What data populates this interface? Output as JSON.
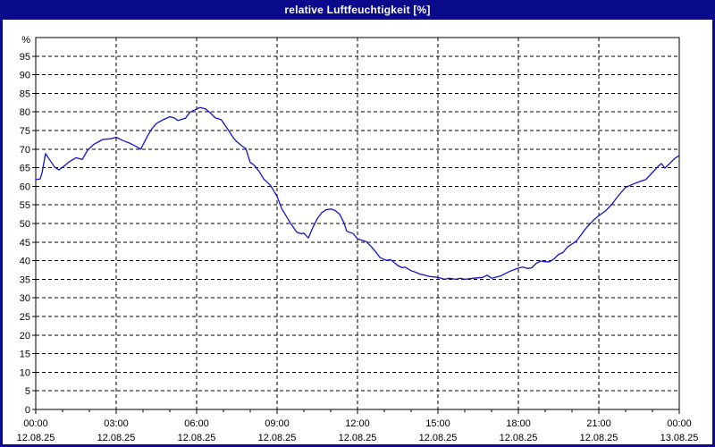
{
  "window": {
    "title": "relative Luftfeuchtigkeit [%]"
  },
  "colors": {
    "titlebar": "#0a0a8c",
    "frame": "#0a0a8c",
    "plot_background": "#ffffff",
    "grid": "#000000",
    "axis": "#000000",
    "line": "#1414cc",
    "label_text": "#000000",
    "title_text": "#ffffff"
  },
  "chart_data": {
    "type": "line",
    "title": "relative Luftfeuchtigkeit [%]",
    "ylabel": "%",
    "xlabel": "",
    "grid": "dashed",
    "legend": "none",
    "y_axis": {
      "unit": "%",
      "min": 0,
      "max": 100,
      "tick_step": 5,
      "top_label": 95,
      "bottom_label": 0
    },
    "x_axis": {
      "range_hours": [
        0,
        24
      ],
      "major_tick_interval_h": 3,
      "minor_tick_interval_h": 1,
      "ticks": [
        {
          "time": "00:00",
          "date": "12.08.25",
          "hour": 0
        },
        {
          "time": "03:00",
          "date": "12.08.25",
          "hour": 3
        },
        {
          "time": "06:00",
          "date": "12.08.25",
          "hour": 6
        },
        {
          "time": "09:00",
          "date": "12.08.25",
          "hour": 9
        },
        {
          "time": "12:00",
          "date": "12.08.25",
          "hour": 12
        },
        {
          "time": "15:00",
          "date": "12.08.25",
          "hour": 15
        },
        {
          "time": "18:00",
          "date": "12.08.25",
          "hour": 18
        },
        {
          "time": "21:00",
          "date": "12.08.25",
          "hour": 21
        },
        {
          "time": "00:00",
          "date": "13.08.25",
          "hour": 24
        }
      ]
    },
    "series": [
      {
        "name": "relative Luftfeuchtigkeit",
        "unit": "%",
        "points": [
          [
            "00:00",
            61.8
          ],
          [
            "00:10",
            62.0
          ],
          [
            "00:14",
            63.6
          ],
          [
            "00:22",
            68.8
          ],
          [
            "00:32",
            67.0
          ],
          [
            "00:42",
            65.2
          ],
          [
            "00:52",
            64.4
          ],
          [
            "01:05",
            65.6
          ],
          [
            "01:15",
            66.6
          ],
          [
            "01:30",
            67.7
          ],
          [
            "01:44",
            67.2
          ],
          [
            "01:56",
            69.7
          ],
          [
            "02:10",
            71.3
          ],
          [
            "02:30",
            72.6
          ],
          [
            "02:48",
            72.8
          ],
          [
            "03:00",
            73.2
          ],
          [
            "03:15",
            72.3
          ],
          [
            "03:30",
            71.6
          ],
          [
            "03:45",
            70.7
          ],
          [
            "03:55",
            70.0
          ],
          [
            "04:10",
            73.5
          ],
          [
            "04:20",
            75.5
          ],
          [
            "04:30",
            76.9
          ],
          [
            "04:45",
            77.9
          ],
          [
            "05:00",
            78.7
          ],
          [
            "05:10",
            78.4
          ],
          [
            "05:18",
            77.7
          ],
          [
            "05:35",
            78.3
          ],
          [
            "05:45",
            79.9
          ],
          [
            "06:00",
            80.8
          ],
          [
            "06:08",
            81.2
          ],
          [
            "06:20",
            80.8
          ],
          [
            "06:30",
            79.8
          ],
          [
            "06:42",
            78.4
          ],
          [
            "06:55",
            77.9
          ],
          [
            "07:10",
            75.3
          ],
          [
            "07:23",
            72.9
          ],
          [
            "07:30",
            72.0
          ],
          [
            "07:42",
            70.8
          ],
          [
            "07:50",
            70.2
          ],
          [
            "08:00",
            66.4
          ],
          [
            "08:08",
            65.8
          ],
          [
            "08:20",
            64.0
          ],
          [
            "08:30",
            62.0
          ],
          [
            "08:45",
            60.3
          ],
          [
            "09:00",
            57.3
          ],
          [
            "09:10",
            54.1
          ],
          [
            "09:20",
            52.1
          ],
          [
            "09:30",
            50.1
          ],
          [
            "09:44",
            47.7
          ],
          [
            "09:55",
            47.2
          ],
          [
            "10:00",
            47.4
          ],
          [
            "10:10",
            46.1
          ],
          [
            "10:20",
            48.9
          ],
          [
            "10:30",
            51.3
          ],
          [
            "10:40",
            52.9
          ],
          [
            "10:50",
            53.7
          ],
          [
            "11:00",
            53.9
          ],
          [
            "11:10",
            53.5
          ],
          [
            "11:20",
            52.5
          ],
          [
            "11:30",
            50.1
          ],
          [
            "11:36",
            47.9
          ],
          [
            "11:50",
            47.3
          ],
          [
            "12:00",
            45.9
          ],
          [
            "12:10",
            45.5
          ],
          [
            "12:20",
            45.1
          ],
          [
            "12:30",
            43.9
          ],
          [
            "12:40",
            42.5
          ],
          [
            "12:50",
            40.9
          ],
          [
            "13:00",
            40.3
          ],
          [
            "13:06",
            40.1
          ],
          [
            "13:14",
            40.3
          ],
          [
            "13:20",
            39.7
          ],
          [
            "13:30",
            38.7
          ],
          [
            "13:40",
            38.1
          ],
          [
            "13:46",
            38.3
          ],
          [
            "14:00",
            37.3
          ],
          [
            "14:10",
            36.9
          ],
          [
            "14:20",
            36.4
          ],
          [
            "14:30",
            36.1
          ],
          [
            "14:40",
            35.8
          ],
          [
            "15:00",
            35.5
          ],
          [
            "15:15",
            35.0
          ],
          [
            "15:25",
            35.3
          ],
          [
            "15:40",
            35.0
          ],
          [
            "15:50",
            35.3
          ],
          [
            "16:00",
            35.0
          ],
          [
            "16:20",
            35.3
          ],
          [
            "16:40",
            35.5
          ],
          [
            "16:50",
            36.1
          ],
          [
            "17:00",
            35.3
          ],
          [
            "17:20",
            35.9
          ],
          [
            "17:40",
            37.1
          ],
          [
            "18:00",
            38.0
          ],
          [
            "18:10",
            38.3
          ],
          [
            "18:20",
            37.9
          ],
          [
            "18:30",
            38.1
          ],
          [
            "18:40",
            39.3
          ],
          [
            "18:50",
            39.9
          ],
          [
            "19:00",
            39.7
          ],
          [
            "19:10",
            39.7
          ],
          [
            "19:20",
            40.5
          ],
          [
            "19:30",
            41.7
          ],
          [
            "19:40",
            42.2
          ],
          [
            "19:50",
            43.7
          ],
          [
            "20:00",
            44.5
          ],
          [
            "20:10",
            45.3
          ],
          [
            "20:20",
            46.9
          ],
          [
            "20:30",
            48.5
          ],
          [
            "20:40",
            49.9
          ],
          [
            "20:50",
            51.1
          ],
          [
            "21:00",
            52.1
          ],
          [
            "21:15",
            53.4
          ],
          [
            "21:30",
            55.3
          ],
          [
            "21:45",
            57.7
          ],
          [
            "22:00",
            59.7
          ],
          [
            "22:15",
            60.5
          ],
          [
            "22:30",
            61.2
          ],
          [
            "22:45",
            61.8
          ],
          [
            "23:00",
            63.7
          ],
          [
            "23:12",
            65.3
          ],
          [
            "23:20",
            66.1
          ],
          [
            "23:28",
            64.9
          ],
          [
            "23:40",
            66.3
          ],
          [
            "23:50",
            67.5
          ],
          [
            "24:00",
            68.3
          ]
        ]
      }
    ]
  }
}
